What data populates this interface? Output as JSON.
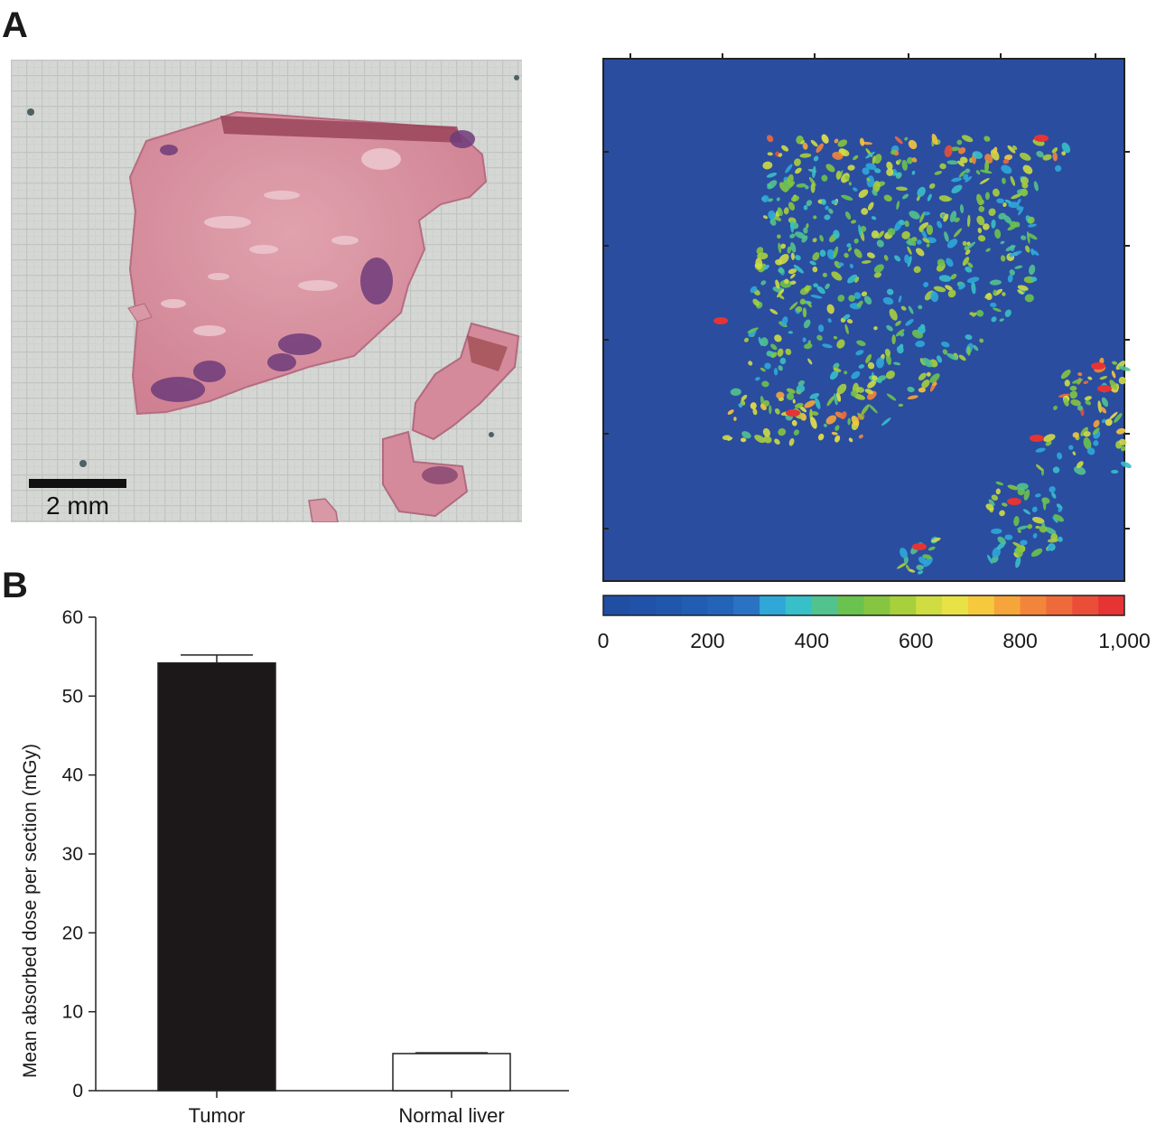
{
  "panel_a_label": "A",
  "panel_b_label": "B",
  "scale_bar_label": "2 mm",
  "colors": {
    "tumor_bar": "#1c1819",
    "normal_liver_bar": "#ffffff",
    "map_background": "#2a4da0",
    "tissue_pink": "#d9899a",
    "tumor_purple": "#6a3a78",
    "grid_background": "#d4d6d3"
  },
  "colorbar": {
    "ticks": [
      "0",
      "200",
      "400",
      "600",
      "800",
      "1,000"
    ],
    "min": 0,
    "max": 1000,
    "colors": [
      "#1f4ea3",
      "#1f52a8",
      "#2057ad",
      "#215db3",
      "#2364b9",
      "#2a73c4",
      "#2fa8d8",
      "#38c0c8",
      "#52c28f",
      "#6ac24f",
      "#86c53f",
      "#a8cf3c",
      "#cfdc42",
      "#e8e246",
      "#f5c83e",
      "#f6a53a",
      "#f3853a",
      "#ef6a3a",
      "#ea4e39",
      "#e63434"
    ]
  },
  "chart_data": {
    "type": "bar",
    "categories": [
      "Tumor",
      "Normal liver"
    ],
    "values": [
      54.2,
      4.7
    ],
    "errors": [
      1.0,
      0.1
    ],
    "ylabel": "Mean absorbed dose per section (mGy)",
    "ylim": [
      0,
      60
    ],
    "yticks": [
      "0",
      "10",
      "20",
      "30",
      "40",
      "50",
      "60"
    ],
    "ytick_values": [
      0,
      10,
      20,
      30,
      40,
      50,
      60
    ]
  }
}
